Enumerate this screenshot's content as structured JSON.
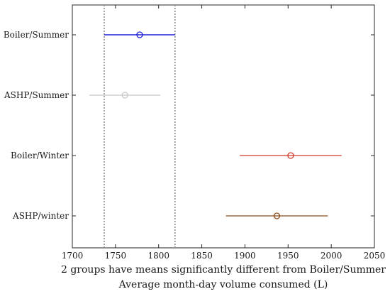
{
  "chart_data": {
    "type": "interval",
    "title": "",
    "caption": "2 groups have means significantly different from Boiler/Summer",
    "xlabel": "Average month-day volume consumed (L)",
    "ylabel": "",
    "xlim": [
      1700,
      2050
    ],
    "xticks": [
      1700,
      1750,
      1800,
      1850,
      1900,
      1950,
      2000,
      2050
    ],
    "grid": false,
    "reference_lines": [
      1737,
      1819
    ],
    "groups": [
      {
        "label": "Boiler/Summer",
        "mean": 1778,
        "low": 1737,
        "high": 1819,
        "color": "#1f1fd6",
        "selected": true
      },
      {
        "label": "ASHP/Summer",
        "mean": 1761,
        "low": 1720,
        "high": 1802,
        "color": "#c8c8c8",
        "selected": false
      },
      {
        "label": "Boiler/Winter",
        "mean": 1953,
        "low": 1894,
        "high": 2012,
        "color": "#d23a2a",
        "selected": false
      },
      {
        "label": "ASHP/winter",
        "mean": 1937,
        "low": 1878,
        "high": 1996,
        "color": "#8a4a14",
        "selected": false
      }
    ]
  }
}
